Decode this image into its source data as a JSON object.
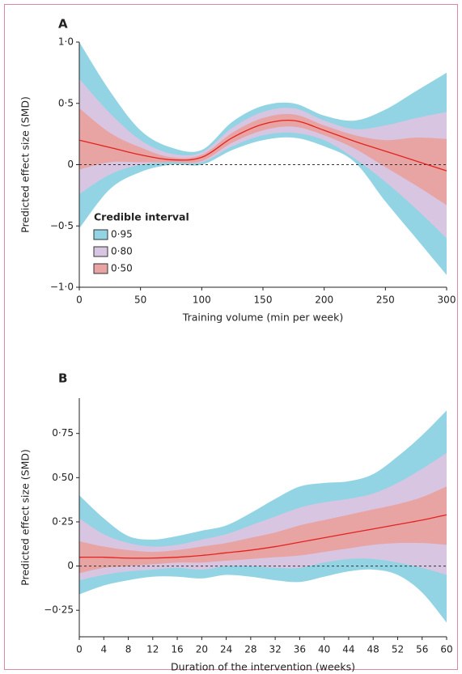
{
  "chart_data": [
    {
      "type": "band-line",
      "panel": "A",
      "xlabel": "Training volume (min per week)",
      "ylabel": "Predicted effect size (SMD)",
      "legend_title": "Credible interval",
      "legend": "lower-left",
      "reference_line": 0,
      "line_color": "#e3231f",
      "x": [
        0,
        25,
        50,
        75,
        100,
        125,
        150,
        175,
        200,
        225,
        250,
        275,
        300
      ],
      "values": [
        0.2,
        0.14,
        0.08,
        0.04,
        0.06,
        0.22,
        0.33,
        0.36,
        0.28,
        0.19,
        0.11,
        0.03,
        -0.05
      ],
      "series": [
        {
          "name": "0·95",
          "color": "#93d4e4",
          "upper": [
            1.0,
            0.6,
            0.28,
            0.14,
            0.12,
            0.35,
            0.48,
            0.5,
            0.4,
            0.36,
            0.45,
            0.6,
            0.75
          ],
          "lower": [
            -0.52,
            -0.2,
            -0.06,
            0.0,
            0.0,
            0.12,
            0.2,
            0.22,
            0.15,
            0.02,
            -0.3,
            -0.6,
            -0.9
          ]
        },
        {
          "name": "0·80",
          "color": "#d8c5e1",
          "upper": [
            0.7,
            0.42,
            0.2,
            0.09,
            0.1,
            0.3,
            0.43,
            0.46,
            0.36,
            0.29,
            0.32,
            0.38,
            0.43
          ],
          "lower": [
            -0.24,
            -0.08,
            0.0,
            0.02,
            0.02,
            0.15,
            0.24,
            0.26,
            0.2,
            0.05,
            -0.14,
            -0.36,
            -0.6
          ]
        },
        {
          "name": "0·50",
          "color": "#e8a3a3",
          "upper": [
            0.46,
            0.26,
            0.14,
            0.06,
            0.08,
            0.26,
            0.38,
            0.41,
            0.32,
            0.24,
            0.2,
            0.22,
            0.21
          ],
          "lower": [
            -0.04,
            0.02,
            0.02,
            0.02,
            0.03,
            0.18,
            0.28,
            0.31,
            0.24,
            0.13,
            -0.02,
            -0.17,
            -0.33
          ]
        }
      ],
      "xlim": [
        0,
        300
      ],
      "xticks": [
        0,
        50,
        100,
        150,
        200,
        250,
        300
      ],
      "ylim": [
        -1,
        1
      ],
      "yticks": [
        {
          "value": 1,
          "label": "1·0"
        },
        {
          "value": 0.5,
          "label": "0·5"
        },
        0,
        {
          "value": -0.5,
          "label": "−0·5"
        },
        {
          "value": -1,
          "label": "−1·0"
        }
      ]
    },
    {
      "type": "band-line",
      "panel": "B",
      "xlabel": "Duration of the intervention (weeks)",
      "ylabel": "Predicted effect size (SMD)",
      "reference_line": 0,
      "line_color": "#e3231f",
      "x": [
        0,
        4,
        8,
        12,
        16,
        20,
        24,
        28,
        32,
        36,
        40,
        44,
        48,
        52,
        56,
        60
      ],
      "values": [
        0.05,
        0.05,
        0.045,
        0.045,
        0.05,
        0.06,
        0.075,
        0.09,
        0.11,
        0.135,
        0.16,
        0.185,
        0.21,
        0.235,
        0.26,
        0.29
      ],
      "series": [
        {
          "color": "#93d4e4",
          "upper": [
            0.4,
            0.27,
            0.17,
            0.15,
            0.17,
            0.2,
            0.23,
            0.3,
            0.38,
            0.45,
            0.47,
            0.48,
            0.52,
            0.62,
            0.74,
            0.88
          ],
          "lower": [
            -0.16,
            -0.11,
            -0.08,
            -0.06,
            -0.06,
            -0.07,
            -0.05,
            -0.06,
            -0.08,
            -0.09,
            -0.06,
            -0.03,
            -0.02,
            -0.05,
            -0.15,
            -0.32
          ]
        },
        {
          "color": "#d8c5e1",
          "upper": [
            0.27,
            0.18,
            0.13,
            0.11,
            0.12,
            0.15,
            0.18,
            0.23,
            0.28,
            0.33,
            0.36,
            0.38,
            0.41,
            0.47,
            0.55,
            0.64
          ],
          "lower": [
            -0.08,
            -0.05,
            -0.03,
            -0.02,
            -0.01,
            -0.02,
            0.0,
            0.0,
            -0.01,
            -0.01,
            0.02,
            0.04,
            0.04,
            0.02,
            -0.01,
            -0.05
          ]
        },
        {
          "color": "#e8a3a3",
          "upper": [
            0.14,
            0.11,
            0.09,
            0.08,
            0.09,
            0.11,
            0.13,
            0.16,
            0.19,
            0.23,
            0.26,
            0.29,
            0.32,
            0.35,
            0.39,
            0.45
          ],
          "lower": [
            -0.04,
            -0.01,
            0.0,
            0.01,
            0.02,
            0.02,
            0.03,
            0.04,
            0.05,
            0.06,
            0.08,
            0.1,
            0.12,
            0.13,
            0.13,
            0.12
          ]
        }
      ],
      "xlim": [
        0,
        60
      ],
      "xticks": [
        0,
        4,
        8,
        12,
        16,
        20,
        24,
        28,
        32,
        36,
        40,
        44,
        48,
        52,
        56,
        60
      ],
      "ylim": [
        -0.4,
        0.95
      ],
      "yticks": [
        {
          "value": 0.75,
          "label": "0·75"
        },
        {
          "value": 0.5,
          "label": "0·50"
        },
        {
          "value": 0.25,
          "label": "0·25"
        },
        0,
        {
          "value": -0.25,
          "label": "−0·25"
        }
      ]
    }
  ]
}
